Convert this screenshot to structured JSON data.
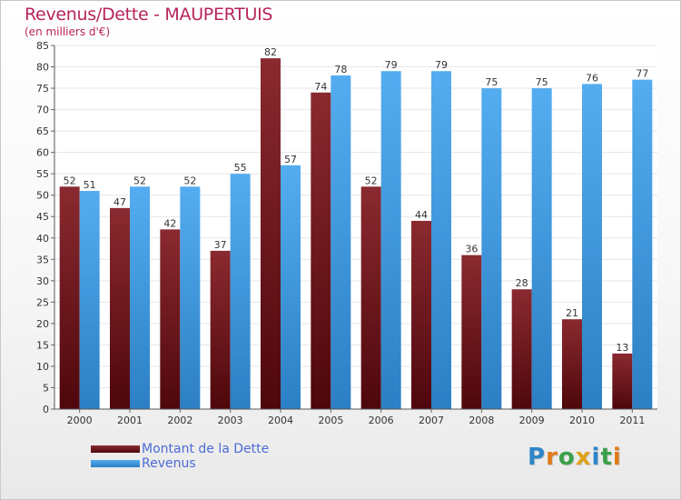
{
  "chart_data": {
    "type": "bar",
    "title": "Revenus/Dette - MAUPERTUIS",
    "subtitle": "(en milliers d'€)",
    "categories": [
      "2000",
      "2001",
      "2002",
      "2003",
      "2004",
      "2005",
      "2006",
      "2007",
      "2008",
      "2009",
      "2010",
      "2011"
    ],
    "series": [
      {
        "name": "Montant de la Dette",
        "color": "#7a1a22",
        "values": [
          52,
          47,
          42,
          37,
          82,
          74,
          52,
          44,
          36,
          28,
          21,
          13
        ]
      },
      {
        "name": "Revenus",
        "color": "#3d9be0",
        "values": [
          51,
          52,
          52,
          55,
          57,
          78,
          79,
          79,
          75,
          75,
          76,
          77
        ]
      }
    ],
    "ylim": [
      0,
      85
    ],
    "yticks": [
      "0",
      "5",
      "10",
      "15",
      "20",
      "25",
      "30",
      "35",
      "40",
      "45",
      "50",
      "55",
      "60",
      "65",
      "70",
      "75",
      "80",
      "85"
    ],
    "grid": true,
    "legend_position": "bottom-left"
  },
  "logo": {
    "text": "Proxiti",
    "letters": [
      {
        "ch": "P",
        "color": "#2e86c9"
      },
      {
        "ch": "r",
        "color": "#e07a1a"
      },
      {
        "ch": "o",
        "color": "#3aa04a"
      },
      {
        "ch": "x",
        "color": "#e0a21a"
      },
      {
        "ch": "i",
        "color": "#2e86c9"
      },
      {
        "ch": "t",
        "color": "#3aa04a"
      },
      {
        "ch": "i",
        "color": "#e07a1a"
      }
    ]
  }
}
